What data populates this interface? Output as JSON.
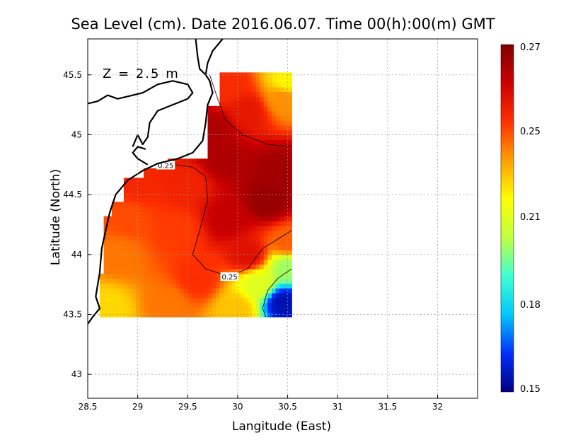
{
  "chart_data": {
    "type": "heatmap",
    "title": "Sea Level (cm). Date 2016.06.07. Time 00(h):00(m) GMT",
    "annotation": "Z = 2.5 m",
    "xlabel": "Langitude (East)",
    "ylabel": "Latitude (North)",
    "xlim": [
      28.5,
      32.4
    ],
    "ylim": [
      42.8,
      45.8
    ],
    "x_ticks": [
      28.5,
      29,
      29.5,
      30,
      30.5,
      31,
      31.5,
      32
    ],
    "x_tick_labels": [
      "28.5",
      "29",
      "29.5",
      "30",
      "30.5",
      "31",
      "31.5",
      "32"
    ],
    "y_ticks": [
      43,
      43.5,
      44,
      44.5,
      45,
      45.5
    ],
    "y_tick_labels": [
      "43",
      "43.5",
      "44",
      "44.5",
      "45",
      "45.5"
    ],
    "grid": true,
    "data_extent": {
      "lon": [
        28.62,
        30.54
      ],
      "lat": [
        43.48,
        45.5
      ]
    },
    "colorbar": {
      "min": 0.15,
      "max": 0.27,
      "tick_values": [
        0.27,
        0.25,
        0.21,
        0.18,
        0.15
      ],
      "tick_labels": [
        "0.27",
        "0.25",
        "0.21",
        "0.18",
        "0.15"
      ],
      "colors": [
        "#000080",
        "#0030ff",
        "#00c8ff",
        "#40ffd0",
        "#c0ff40",
        "#ffff00",
        "#ffa000",
        "#ff3000",
        "#cc0000",
        "#800000"
      ]
    },
    "contour_level": 0.25,
    "contour_labels": [
      {
        "text": "0.25",
        "lon": 29.28,
        "lat": 44.74
      },
      {
        "text": "0.25",
        "lon": 29.92,
        "lat": 43.81
      }
    ],
    "field_samples": [
      {
        "lon": 28.7,
        "lat": 43.55,
        "value": 0.222
      },
      {
        "lon": 28.8,
        "lat": 44.0,
        "value": 0.235
      },
      {
        "lon": 28.9,
        "lat": 44.3,
        "value": 0.24
      },
      {
        "lon": 29.0,
        "lat": 44.6,
        "value": 0.246
      },
      {
        "lon": 29.3,
        "lat": 43.6,
        "value": 0.235
      },
      {
        "lon": 29.4,
        "lat": 44.2,
        "value": 0.242
      },
      {
        "lon": 29.5,
        "lat": 44.6,
        "value": 0.247
      },
      {
        "lon": 29.75,
        "lat": 45.05,
        "value": 0.262
      },
      {
        "lon": 29.85,
        "lat": 44.8,
        "value": 0.262
      },
      {
        "lon": 29.9,
        "lat": 44.3,
        "value": 0.258
      },
      {
        "lon": 29.9,
        "lat": 45.4,
        "value": 0.245
      },
      {
        "lon": 30.1,
        "lat": 44.0,
        "value": 0.252
      },
      {
        "lon": 30.1,
        "lat": 45.2,
        "value": 0.25
      },
      {
        "lon": 30.3,
        "lat": 44.45,
        "value": 0.266
      },
      {
        "lon": 30.4,
        "lat": 44.7,
        "value": 0.264
      },
      {
        "lon": 30.45,
        "lat": 45.3,
        "value": 0.232
      },
      {
        "lon": 30.5,
        "lat": 45.45,
        "value": 0.218
      },
      {
        "lon": 30.0,
        "lat": 43.55,
        "value": 0.225
      },
      {
        "lon": 30.2,
        "lat": 43.75,
        "value": 0.21
      },
      {
        "lon": 30.45,
        "lat": 43.6,
        "value": 0.155
      },
      {
        "lon": 30.5,
        "lat": 43.9,
        "value": 0.2
      },
      {
        "lon": 30.5,
        "lat": 44.1,
        "value": 0.238
      },
      {
        "lon": 29.6,
        "lat": 43.8,
        "value": 0.244
      }
    ]
  }
}
